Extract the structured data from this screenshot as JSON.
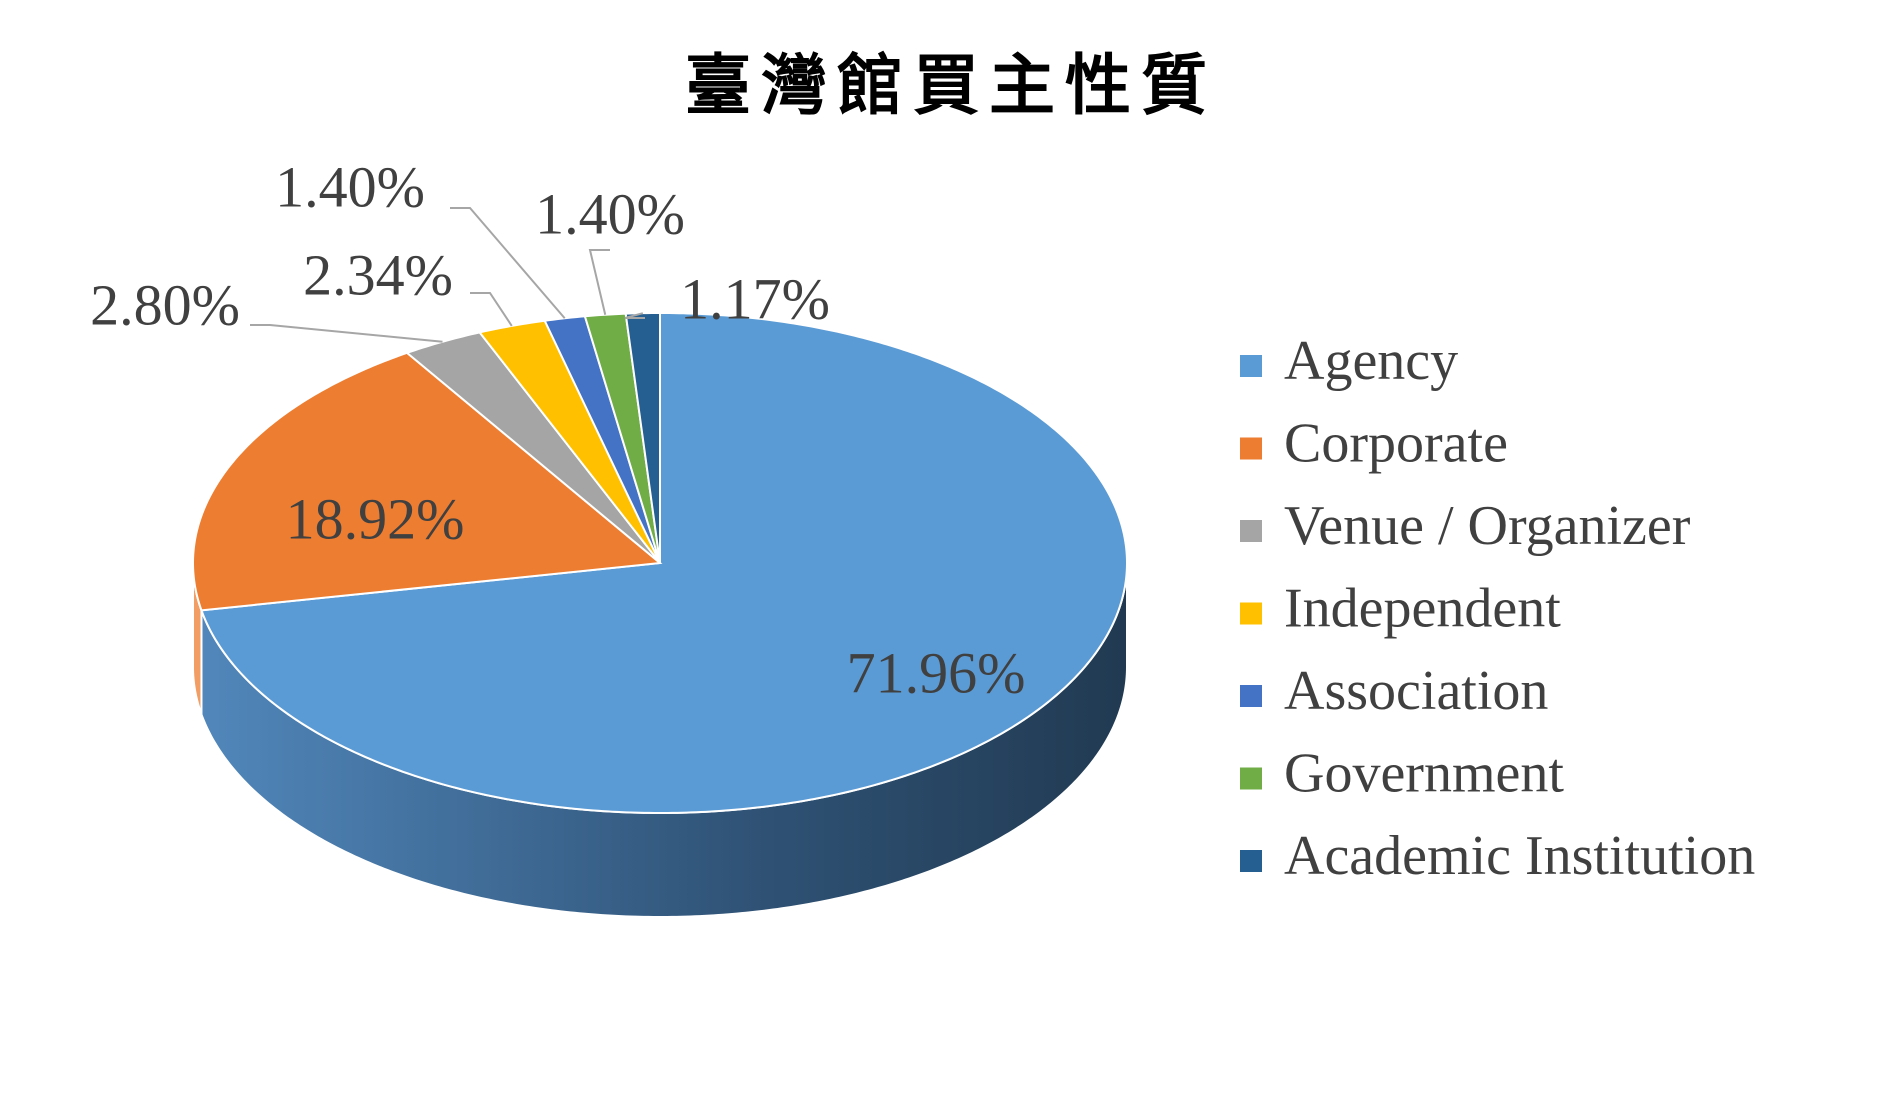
{
  "chart_data": {
    "type": "pie",
    "title": "臺灣館買主性質",
    "categories": [
      "Agency",
      "Corporate",
      "Venue / Organizer",
      "Independent",
      "Association",
      "Government",
      "Academic Institution"
    ],
    "values": [
      71.96,
      18.92,
      2.8,
      2.34,
      1.4,
      1.4,
      1.17
    ],
    "value_labels": [
      "71.96%",
      "18.92%",
      "2.80%",
      "2.34%",
      "1.40%",
      "1.40%",
      "1.17%"
    ],
    "colors": [
      "#5b9bd5",
      "#ed7d31",
      "#a5a5a5",
      "#ffc000",
      "#4472c4",
      "#70ad47",
      "#255e91"
    ],
    "legend": "right"
  }
}
